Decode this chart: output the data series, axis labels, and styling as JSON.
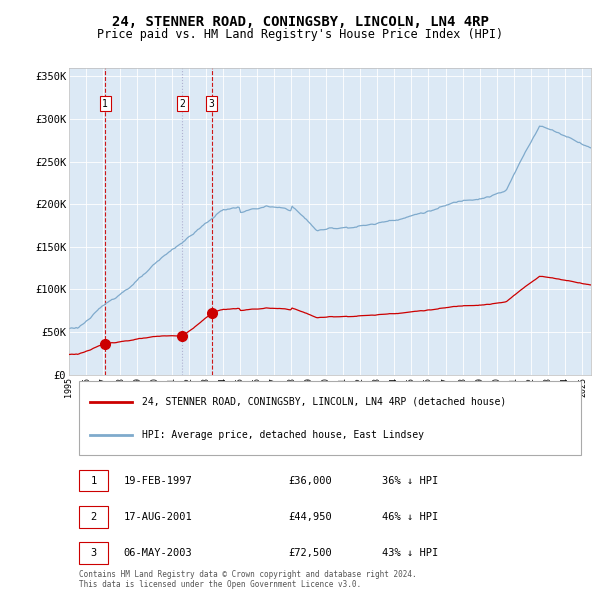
{
  "title": "24, STENNER ROAD, CONINGSBY, LINCOLN, LN4 4RP",
  "subtitle": "Price paid vs. HM Land Registry's House Price Index (HPI)",
  "title_fontsize": 10,
  "subtitle_fontsize": 8.5,
  "bg_color": "#dce9f5",
  "fig_bg_color": "#ffffff",
  "price_paid_color": "#cc0000",
  "hpi_color": "#7faacc",
  "marker_color": "#cc0000",
  "sales": [
    {
      "date_year": 1997.12,
      "price": 36000,
      "label": "1"
    },
    {
      "date_year": 2001.62,
      "price": 44950,
      "label": "2"
    },
    {
      "date_year": 2003.34,
      "price": 72500,
      "label": "3"
    }
  ],
  "vline_styles": [
    "--",
    ":",
    "--"
  ],
  "vline_colors": [
    "#cc0000",
    "#aaaacc",
    "#cc0000"
  ],
  "legend_label_red": "24, STENNER ROAD, CONINGSBY, LINCOLN, LN4 4RP (detached house)",
  "legend_label_blue": "HPI: Average price, detached house, East Lindsey",
  "table_rows": [
    {
      "num": "1",
      "date": "19-FEB-1997",
      "price": "£36,000",
      "pct": "36% ↓ HPI"
    },
    {
      "num": "2",
      "date": "17-AUG-2001",
      "price": "£44,950",
      "pct": "46% ↓ HPI"
    },
    {
      "num": "3",
      "date": "06-MAY-2003",
      "price": "£72,500",
      "pct": "43% ↓ HPI"
    }
  ],
  "footer1": "Contains HM Land Registry data © Crown copyright and database right 2024.",
  "footer2": "This data is licensed under the Open Government Licence v3.0.",
  "ylim": [
    0,
    360000
  ],
  "yticks": [
    0,
    50000,
    100000,
    150000,
    200000,
    250000,
    300000,
    350000
  ],
  "ytick_labels": [
    "£0",
    "£50K",
    "£100K",
    "£150K",
    "£200K",
    "£250K",
    "£300K",
    "£350K"
  ],
  "xlim_start": 1995.0,
  "xlim_end": 2025.5
}
